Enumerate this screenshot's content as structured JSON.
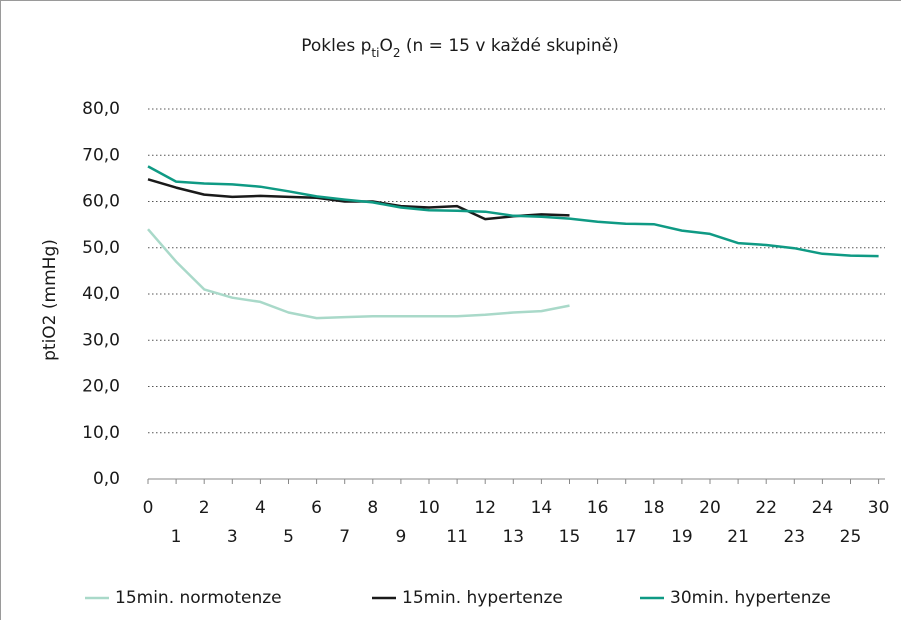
{
  "chart_data": {
    "type": "line",
    "title_parts": [
      "Pokles p",
      "ti",
      "O",
      "2",
      " (n = 15 v každé skupině)"
    ],
    "y_label": "ptiO2 (mmHg)",
    "categories": [
      "0",
      "1",
      "2",
      "3",
      "4",
      "5",
      "6",
      "7",
      "8",
      "9",
      "10",
      "11",
      "12",
      "13",
      "14",
      "15",
      "16",
      "17",
      "18",
      "19",
      "20",
      "21",
      "22",
      "23",
      "24",
      "25",
      "30"
    ],
    "series": [
      {
        "name": "15min. normotenze",
        "color": "#a9d9c9",
        "values": [
          54,
          47,
          41,
          39.2,
          38.3,
          36,
          34.8,
          35,
          35.2,
          35.2,
          35.2,
          35.2,
          35.5,
          36,
          36.3,
          37.5,
          null,
          null,
          null,
          null,
          null,
          null,
          null,
          null,
          null,
          null,
          null
        ]
      },
      {
        "name": "15min. hypertenze",
        "color": "#1a1a1a",
        "values": [
          64.8,
          63,
          61.5,
          61,
          61.2,
          61,
          60.8,
          60,
          60,
          59,
          58.7,
          59,
          56.2,
          56.8,
          57.2,
          57,
          null,
          null,
          null,
          null,
          null,
          null,
          null,
          null,
          null,
          null,
          null
        ]
      },
      {
        "name": "30min. hypertenze",
        "color": "#0f9a84",
        "values": [
          67.6,
          64.3,
          63.9,
          63.7,
          63.2,
          62.2,
          61.1,
          60.4,
          59.8,
          58.7,
          58.1,
          58,
          57.8,
          56.9,
          56.7,
          56.3,
          55.6,
          55.2,
          55.1,
          53.7,
          53,
          51,
          50.6,
          49.9,
          48.7,
          48.3,
          48.2
        ]
      }
    ],
    "ylim": [
      0,
      80
    ],
    "yticks": [
      {
        "value": 0,
        "label": "0,0"
      },
      {
        "value": 10,
        "label": "10,0"
      },
      {
        "value": 20,
        "label": "20,0"
      },
      {
        "value": 30,
        "label": "30,0"
      },
      {
        "value": 40,
        "label": "40,0"
      },
      {
        "value": 50,
        "label": "50,0"
      },
      {
        "value": 60,
        "label": "60,0"
      },
      {
        "value": 70,
        "label": "70,0"
      },
      {
        "value": 80,
        "label": "80,0"
      }
    ],
    "grid": true,
    "legend": "bottom"
  }
}
